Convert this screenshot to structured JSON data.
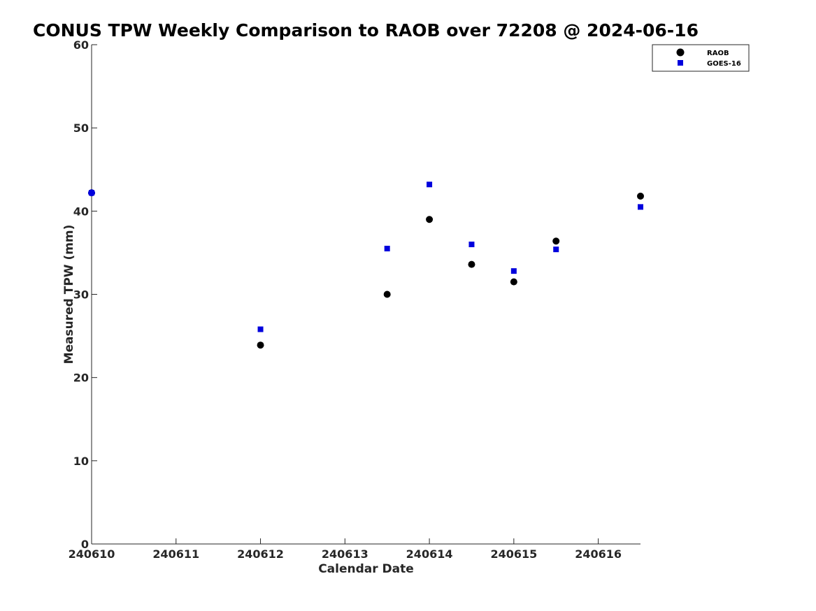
{
  "chart_data": {
    "type": "scatter",
    "title": "CONUS TPW Weekly Comparison to RAOB over 72208 @ 2024-06-16",
    "xlabel": "Calendar Date",
    "ylabel": "Measured TPW (mm)",
    "xlim": [
      240610,
      240616.5
    ],
    "ylim": [
      0,
      60
    ],
    "x_ticks": [
      240610,
      240611,
      240612,
      240613,
      240614,
      240615,
      240616
    ],
    "x_tick_labels": [
      "240610",
      "240611",
      "240612",
      "240613",
      "240614",
      "240615",
      "240616"
    ],
    "y_ticks": [
      0,
      10,
      20,
      30,
      40,
      50,
      60
    ],
    "y_tick_labels": [
      "0",
      "10",
      "20",
      "30",
      "40",
      "50",
      "60"
    ],
    "grid": false,
    "legend_position": "top-right",
    "series": [
      {
        "name": "RAOB",
        "marker": "circle",
        "color": "#000000",
        "points": [
          {
            "x": 240610,
            "y": 42.2
          },
          {
            "x": 240612,
            "y": 23.9
          },
          {
            "x": 240613.5,
            "y": 30.0
          },
          {
            "x": 240614,
            "y": 39.0
          },
          {
            "x": 240614.5,
            "y": 33.6
          },
          {
            "x": 240615,
            "y": 31.5
          },
          {
            "x": 240615.5,
            "y": 36.4
          },
          {
            "x": 240616.5,
            "y": 41.8
          }
        ]
      },
      {
        "name": "GOES-16",
        "marker": "square",
        "color": "#0000dd",
        "points": [
          {
            "x": 240610,
            "y": 42.2
          },
          {
            "x": 240612,
            "y": 25.8
          },
          {
            "x": 240613.5,
            "y": 35.5
          },
          {
            "x": 240614,
            "y": 43.2
          },
          {
            "x": 240614.5,
            "y": 36.0
          },
          {
            "x": 240615,
            "y": 32.8
          },
          {
            "x": 240615.5,
            "y": 35.4
          },
          {
            "x": 240616.5,
            "y": 40.5
          }
        ]
      }
    ]
  }
}
